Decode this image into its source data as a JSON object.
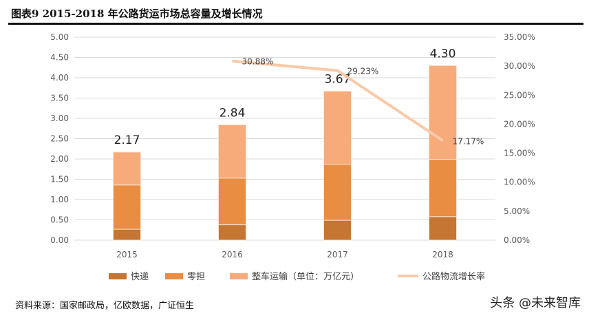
{
  "title": "图表9 2015-2018 年公路货运市场总容量及增长情况",
  "source": "资料来源：国家邮政局，亿欧数据，广证恒生",
  "watermark": "头条 @未来智库",
  "chart_data": {
    "type": "bar",
    "categories": [
      "2015",
      "2016",
      "2017",
      "2018"
    ],
    "series": [
      {
        "name": "快递",
        "values": [
          0.27,
          0.38,
          0.49,
          0.58
        ],
        "color": "#c47632"
      },
      {
        "name": "零担",
        "values": [
          1.09,
          1.15,
          1.38,
          1.41
        ],
        "color": "#e88d42"
      },
      {
        "name": "整车运输（单位：万亿元）",
        "values": [
          0.81,
          1.31,
          1.8,
          2.31
        ],
        "color": "#f7ab7b"
      }
    ],
    "totals": [
      "2.17",
      "2.84",
      "3.67",
      "4.30"
    ],
    "line": {
      "name": "公路物流增长率",
      "x": [
        "2016",
        "2017",
        "2018"
      ],
      "values": [
        30.88,
        29.23,
        17.17
      ],
      "labels": [
        "30.88%",
        "29.23%",
        "17.17%"
      ],
      "color": "#f9c9a8"
    },
    "ylim": [
      0,
      5
    ],
    "yticks": [
      "0.00",
      "0.50",
      "1.00",
      "1.50",
      "2.00",
      "2.50",
      "3.00",
      "3.50",
      "4.00",
      "4.50",
      "5.00"
    ],
    "y2lim": [
      0,
      35
    ],
    "y2ticks": [
      "0.00%",
      "5.00%",
      "10.00%",
      "15.00%",
      "20.00%",
      "25.00%",
      "30.00%",
      "35.00%"
    ],
    "grid": true,
    "legend": "bottom"
  }
}
